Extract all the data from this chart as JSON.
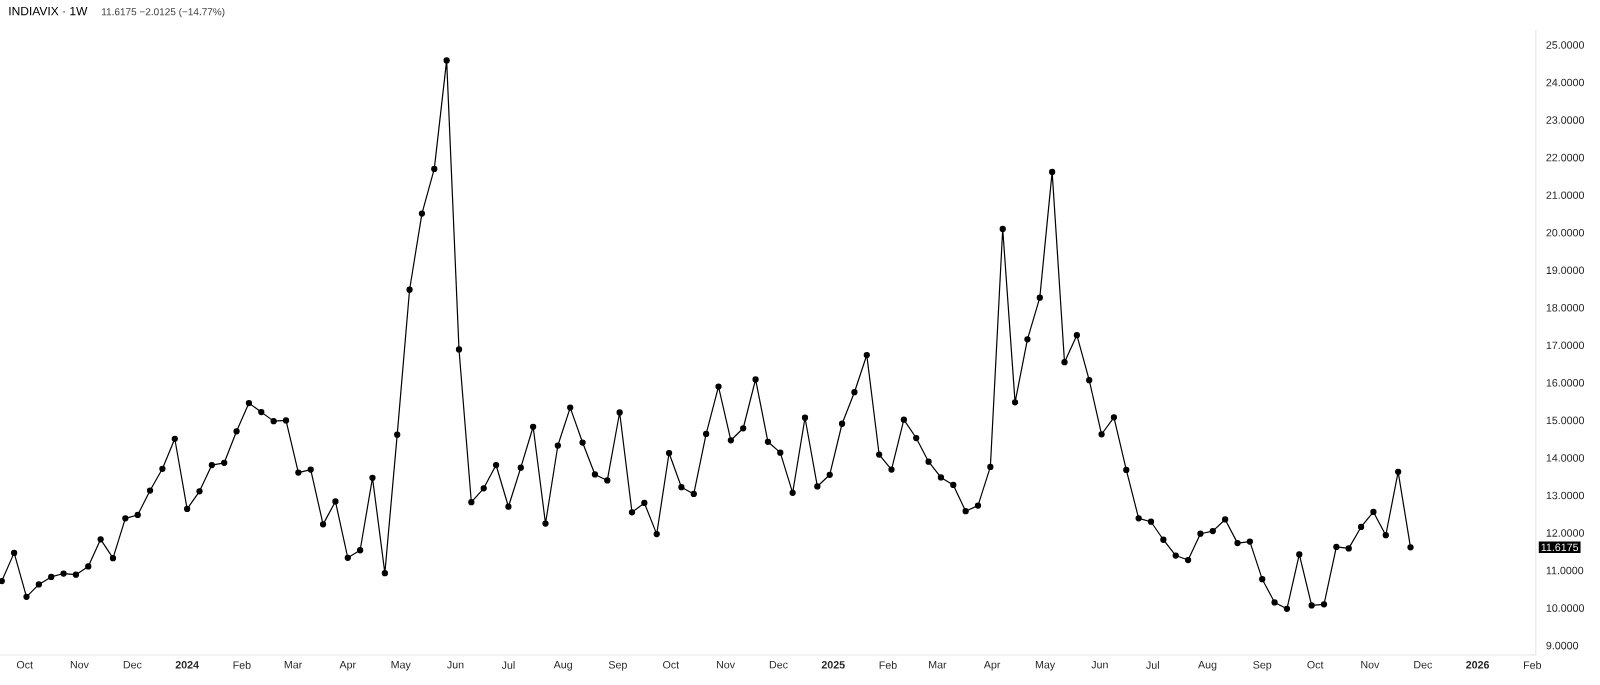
{
  "chart_data": {
    "type": "line",
    "title": "INDIAVIX · 1W",
    "subtitle": "11.6175 −2.0125 (−14.77%)",
    "x": [
      "2023-09-18",
      "2023-09-25",
      "2023-10-02",
      "2023-10-09",
      "2023-10-16",
      "2023-10-23",
      "2023-10-30",
      "2023-11-06",
      "2023-11-13",
      "2023-11-20",
      "2023-11-27",
      "2023-12-04",
      "2023-12-11",
      "2023-12-18",
      "2023-12-25",
      "2024-01-01",
      "2024-01-08",
      "2024-01-15",
      "2024-01-22",
      "2024-01-29",
      "2024-02-05",
      "2024-02-12",
      "2024-02-19",
      "2024-02-26",
      "2024-03-04",
      "2024-03-11",
      "2024-03-18",
      "2024-03-25",
      "2024-04-01",
      "2024-04-08",
      "2024-04-15",
      "2024-04-22",
      "2024-04-29",
      "2024-05-06",
      "2024-05-13",
      "2024-05-20",
      "2024-05-27",
      "2024-06-03",
      "2024-06-10",
      "2024-06-17",
      "2024-06-24",
      "2024-07-01",
      "2024-07-08",
      "2024-07-15",
      "2024-07-22",
      "2024-07-29",
      "2024-08-05",
      "2024-08-12",
      "2024-08-19",
      "2024-08-26",
      "2024-09-02",
      "2024-09-09",
      "2024-09-16",
      "2024-09-23",
      "2024-09-30",
      "2024-10-07",
      "2024-10-14",
      "2024-10-21",
      "2024-10-28",
      "2024-11-04",
      "2024-11-11",
      "2024-11-18",
      "2024-11-25",
      "2024-12-02",
      "2024-12-09",
      "2024-12-16",
      "2024-12-23",
      "2024-12-30",
      "2025-01-06",
      "2025-01-13",
      "2025-01-20",
      "2025-01-27",
      "2025-02-03",
      "2025-02-10",
      "2025-02-17",
      "2025-02-24",
      "2025-03-03",
      "2025-03-10",
      "2025-03-17",
      "2025-03-24",
      "2025-03-31",
      "2025-04-07",
      "2025-04-14",
      "2025-04-21",
      "2025-04-28",
      "2025-05-05",
      "2025-05-12",
      "2025-05-19",
      "2025-05-26",
      "2025-06-02",
      "2025-06-09",
      "2025-06-16",
      "2025-06-23",
      "2025-06-30",
      "2025-07-07",
      "2025-07-14",
      "2025-07-21",
      "2025-07-28",
      "2025-08-04",
      "2025-08-11",
      "2025-08-18",
      "2025-08-25",
      "2025-09-01",
      "2025-09-08",
      "2025-09-15",
      "2025-09-22",
      "2025-09-29",
      "2025-10-06",
      "2025-10-13",
      "2025-10-20",
      "2025-10-27",
      "2025-11-03",
      "2025-11-10",
      "2025-11-17",
      "2025-11-24"
    ],
    "values": [
      10.72,
      11.47,
      10.3,
      10.63,
      10.83,
      10.92,
      10.89,
      11.11,
      11.83,
      11.33,
      12.39,
      12.48,
      13.13,
      13.71,
      14.51,
      12.64,
      13.11,
      13.81,
      13.87,
      14.71,
      15.46,
      15.22,
      14.98,
      15.0,
      13.61,
      13.69,
      12.23,
      12.84,
      11.34,
      11.54,
      13.47,
      10.93,
      14.62,
      18.48,
      20.51,
      21.7,
      24.59,
      16.89,
      12.82,
      13.19,
      13.81,
      12.7,
      13.74,
      14.83,
      12.25,
      14.33,
      15.34,
      14.41,
      13.56,
      13.4,
      15.21,
      12.55,
      12.8,
      11.97,
      14.13,
      13.22,
      13.04,
      14.64,
      15.9,
      14.47,
      14.79,
      16.09,
      14.43,
      14.14,
      13.07,
      15.07,
      13.24,
      13.55,
      14.91,
      15.75,
      16.74,
      14.09,
      13.69,
      15.02,
      14.53,
      13.9,
      13.48,
      13.28,
      12.58,
      12.73,
      13.76,
      20.1,
      15.48,
      17.16,
      18.27,
      21.62,
      16.55,
      17.27,
      16.07,
      14.63,
      15.08,
      13.68,
      12.39,
      12.3,
      11.82,
      11.4,
      11.28,
      11.98,
      12.05,
      12.36,
      11.73,
      11.77,
      10.77,
      10.15,
      9.98,
      11.43,
      10.07,
      10.1,
      11.63,
      11.59,
      12.16,
      12.56,
      11.94,
      13.63,
      11.6175
    ],
    "color": "#000000",
    "marker": "circle",
    "line_style": "solid",
    "xlim": [
      "2023-09-17",
      "2026-02-03"
    ],
    "xticks": [
      {
        "value": "2023-10-01",
        "label": "Oct"
      },
      {
        "value": "2023-11-01",
        "label": "Nov"
      },
      {
        "value": "2023-12-01",
        "label": "Dec"
      },
      {
        "value": "2024-01-01",
        "label": "2024"
      },
      {
        "value": "2024-02-01",
        "label": "Feb"
      },
      {
        "value": "2024-03-01",
        "label": "Mar"
      },
      {
        "value": "2024-04-01",
        "label": "Apr"
      },
      {
        "value": "2024-05-01",
        "label": "May"
      },
      {
        "value": "2024-06-01",
        "label": "Jun"
      },
      {
        "value": "2024-07-01",
        "label": "Jul"
      },
      {
        "value": "2024-08-01",
        "label": "Aug"
      },
      {
        "value": "2024-09-01",
        "label": "Sep"
      },
      {
        "value": "2024-10-01",
        "label": "Oct"
      },
      {
        "value": "2024-11-01",
        "label": "Nov"
      },
      {
        "value": "2024-12-01",
        "label": "Dec"
      },
      {
        "value": "2025-01-01",
        "label": "2025"
      },
      {
        "value": "2025-02-01",
        "label": "Feb"
      },
      {
        "value": "2025-03-01",
        "label": "Mar"
      },
      {
        "value": "2025-04-01",
        "label": "Apr"
      },
      {
        "value": "2025-05-01",
        "label": "May"
      },
      {
        "value": "2025-06-01",
        "label": "Jun"
      },
      {
        "value": "2025-07-01",
        "label": "Jul"
      },
      {
        "value": "2025-08-01",
        "label": "Aug"
      },
      {
        "value": "2025-09-01",
        "label": "Sep"
      },
      {
        "value": "2025-10-01",
        "label": "Oct"
      },
      {
        "value": "2025-11-01",
        "label": "Nov"
      },
      {
        "value": "2025-12-01",
        "label": "Dec"
      },
      {
        "value": "2026-01-01",
        "label": "2026"
      },
      {
        "value": "2026-02-01",
        "label": "Feb"
      }
    ],
    "ylim": [
      8.75,
      25.4
    ],
    "yticks": [
      {
        "value": 9,
        "label": "9.0000"
      },
      {
        "value": 10,
        "label": "10.0000"
      },
      {
        "value": 11,
        "label": "11.0000"
      },
      {
        "value": 12,
        "label": "12.0000"
      },
      {
        "value": 13,
        "label": "13.0000"
      },
      {
        "value": 14,
        "label": "14.0000"
      },
      {
        "value": 15,
        "label": "15.0000"
      },
      {
        "value": 16,
        "label": "16.0000"
      },
      {
        "value": 17,
        "label": "17.0000"
      },
      {
        "value": 18,
        "label": "18.0000"
      },
      {
        "value": 19,
        "label": "19.0000"
      },
      {
        "value": 20,
        "label": "20.0000"
      },
      {
        "value": 21,
        "label": "21.0000"
      },
      {
        "value": 22,
        "label": "22.0000"
      },
      {
        "value": 23,
        "label": "23.0000"
      },
      {
        "value": 24,
        "label": "24.0000"
      },
      {
        "value": 25,
        "label": "25.0000"
      }
    ],
    "annotations": [
      "11.6175"
    ]
  }
}
